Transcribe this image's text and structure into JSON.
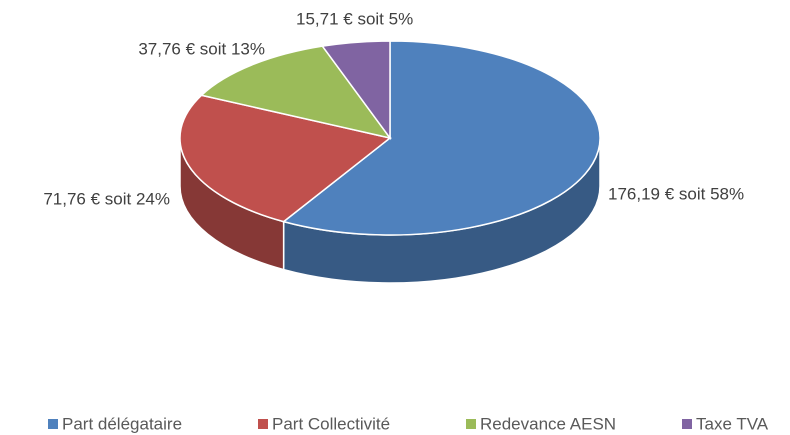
{
  "chart_data": {
    "type": "pie3d",
    "categories": [
      "Part délégataire",
      "Part Collectivité",
      "Redevance AESN",
      "Taxe TVA"
    ],
    "values": [
      176.19,
      71.76,
      37.76,
      15.71
    ],
    "value_labels": [
      "176,19 € soit 58%",
      "71,76 € soit 24%",
      "37,76 € soit 13%",
      "15,71 € soit 5%"
    ],
    "colors": [
      "#4f81bd",
      "#c0504d",
      "#9bbb59",
      "#8064a2"
    ],
    "legend": "bottom"
  }
}
